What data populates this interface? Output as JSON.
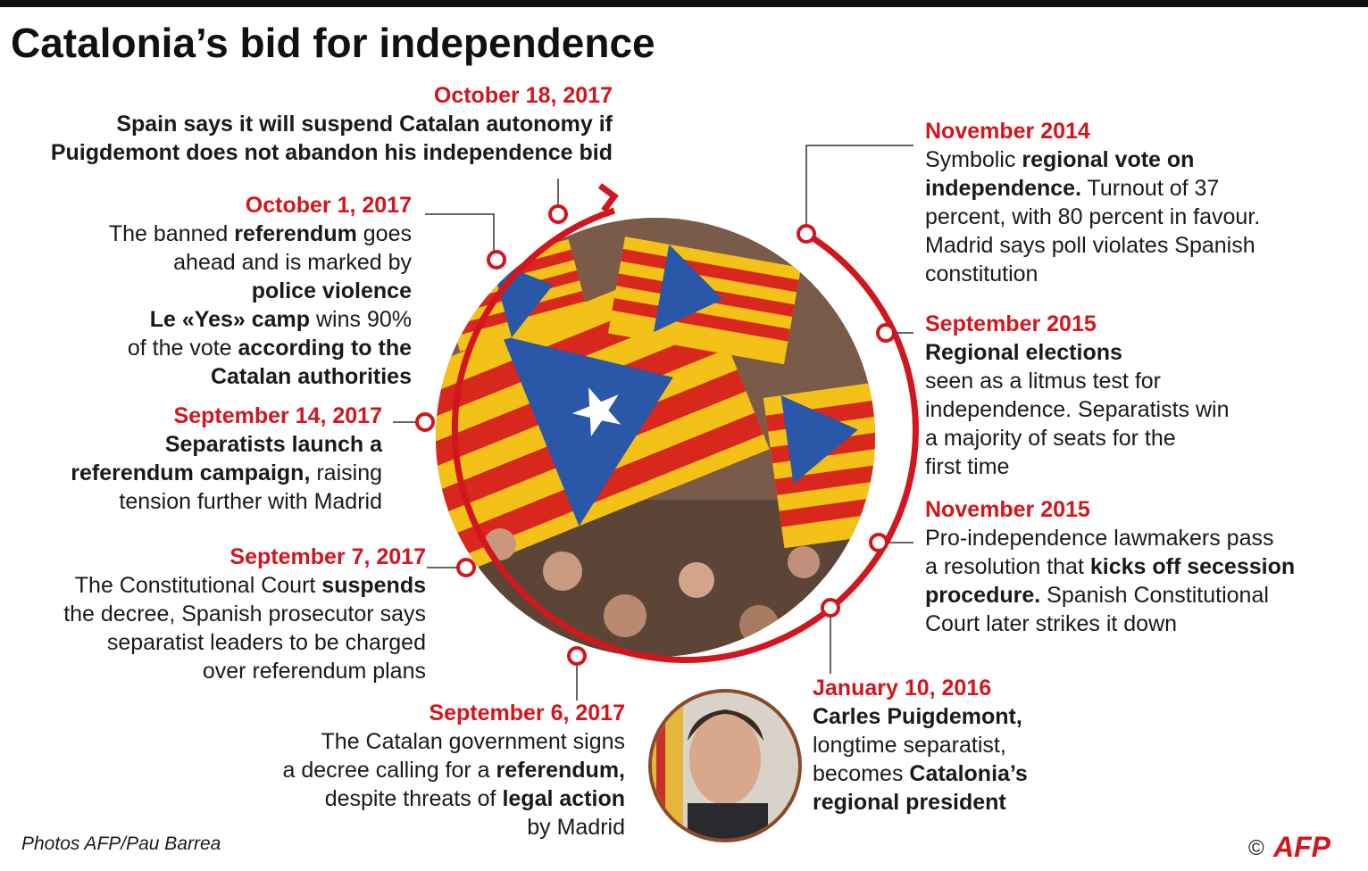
{
  "header": {
    "title": "Catalonia’s bid for independence"
  },
  "events": [
    {
      "date": "October 18, 2017",
      "lines": [
        [
          {
            "text": "Spain says it will suspend Catalan autonomy if",
            "bold": true
          }
        ],
        [
          {
            "text": "Puigdemont does not abandon his independence bid",
            "bold": true
          }
        ]
      ]
    },
    {
      "date": "October 1, 2017",
      "lines": [
        [
          {
            "text": "The banned ",
            "bold": false
          },
          {
            "text": "referendum",
            "bold": true
          },
          {
            "text": " goes",
            "bold": false
          }
        ],
        [
          {
            "text": "ahead and is marked by",
            "bold": false
          }
        ],
        [
          {
            "text": "police violence",
            "bold": true
          }
        ],
        [
          {
            "text": "Le «Yes» camp",
            "bold": true
          },
          {
            "text": " wins 90%",
            "bold": false
          }
        ],
        [
          {
            "text": "of the vote ",
            "bold": false
          },
          {
            "text": "according to the",
            "bold": true
          }
        ],
        [
          {
            "text": "Catalan authorities",
            "bold": true
          }
        ]
      ]
    },
    {
      "date": "September 14, 2017",
      "lines": [
        [
          {
            "text": "Separatists launch a",
            "bold": true
          }
        ],
        [
          {
            "text": "referendum campaign,",
            "bold": true
          },
          {
            "text": " raising",
            "bold": false
          }
        ],
        [
          {
            "text": "tension further with Madrid",
            "bold": false
          }
        ]
      ]
    },
    {
      "date": "September 7, 2017",
      "lines": [
        [
          {
            "text": "The Constitutional Court ",
            "bold": false
          },
          {
            "text": "suspends",
            "bold": true
          }
        ],
        [
          {
            "text": "the decree, Spanish prosecutor says",
            "bold": false
          }
        ],
        [
          {
            "text": "separatist leaders to be charged",
            "bold": false
          }
        ],
        [
          {
            "text": "over referendum plans",
            "bold": false
          }
        ]
      ]
    },
    {
      "date": "September 6, 2017",
      "lines": [
        [
          {
            "text": "The Catalan government signs",
            "bold": false
          }
        ],
        [
          {
            "text": "a decree calling for a ",
            "bold": false
          },
          {
            "text": "referendum,",
            "bold": true
          }
        ],
        [
          {
            "text": "despite threats of ",
            "bold": false
          },
          {
            "text": "legal action",
            "bold": true
          }
        ],
        [
          {
            "text": "by Madrid",
            "bold": false
          }
        ]
      ]
    },
    {
      "date": "November 2014",
      "lines": [
        [
          {
            "text": "Symbolic ",
            "bold": false
          },
          {
            "text": "regional vote on",
            "bold": true
          }
        ],
        [
          {
            "text": "independence.",
            "bold": true
          },
          {
            "text": " Turnout of 37",
            "bold": false
          }
        ],
        [
          {
            "text": "percent, with 80 percent in favour.",
            "bold": false
          }
        ],
        [
          {
            "text": "Madrid says poll violates Spanish",
            "bold": false
          }
        ],
        [
          {
            "text": "constitution",
            "bold": false
          }
        ]
      ]
    },
    {
      "date": "September 2015",
      "lines": [
        [
          {
            "text": "Regional elections",
            "bold": true
          }
        ],
        [
          {
            "text": "seen as a litmus test for",
            "bold": false
          }
        ],
        [
          {
            "text": "independence. Separatists win",
            "bold": false
          }
        ],
        [
          {
            "text": "a majority of seats for the",
            "bold": false
          }
        ],
        [
          {
            "text": "first time",
            "bold": false
          }
        ]
      ]
    },
    {
      "date": "November 2015",
      "lines": [
        [
          {
            "text": "Pro-independence lawmakers pass",
            "bold": false
          }
        ],
        [
          {
            "text": "a resolution that ",
            "bold": false
          },
          {
            "text": "kicks off secession",
            "bold": true
          }
        ],
        [
          {
            "text": "procedure.",
            "bold": true
          },
          {
            "text": " Spanish Constitutional",
            "bold": false
          }
        ],
        [
          {
            "text": "Court later strikes it down",
            "bold": false
          }
        ]
      ]
    },
    {
      "date": "January 10, 2016",
      "lines": [
        [
          {
            "text": "Carles Puigdemont,",
            "bold": true
          }
        ],
        [
          {
            "text": "longtime separatist,",
            "bold": false
          }
        ],
        [
          {
            "text": "becomes ",
            "bold": false
          },
          {
            "text": "Catalonia’s",
            "bold": true
          }
        ],
        [
          {
            "text": "regional president",
            "bold": true
          }
        ]
      ]
    }
  ],
  "footer": {
    "credit": "Photos AFP/Pau Barrea",
    "copyright": "©",
    "logo": "AFP"
  }
}
